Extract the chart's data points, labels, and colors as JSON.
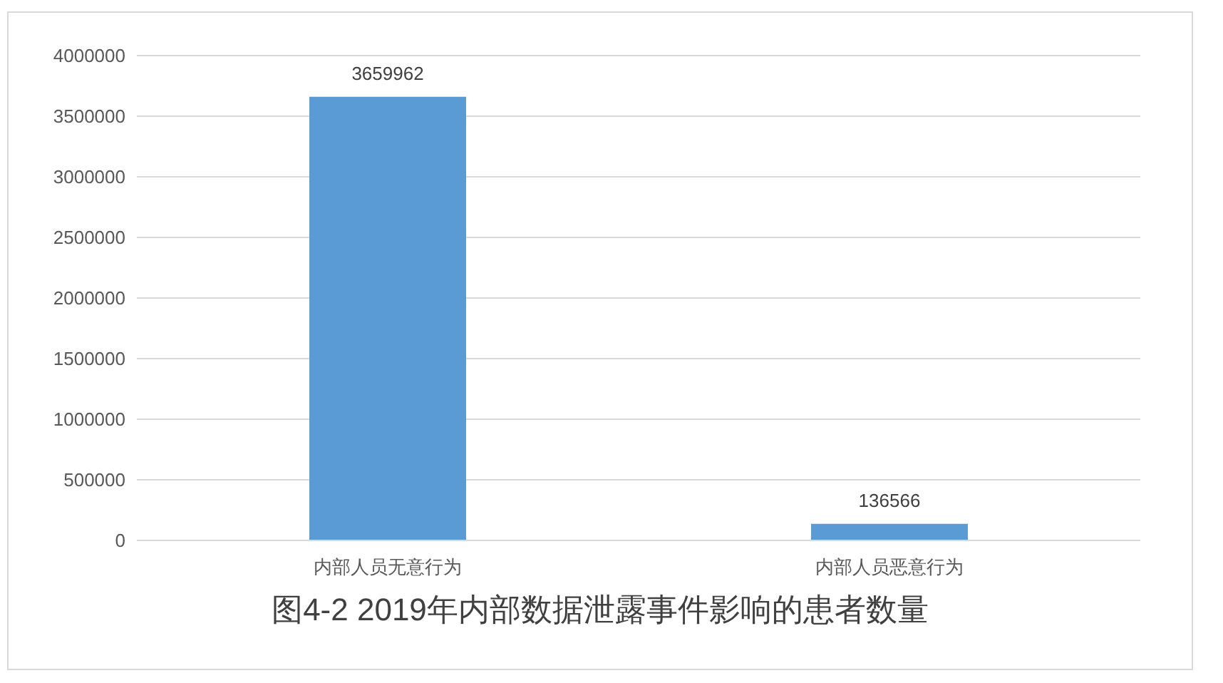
{
  "chart_data": {
    "type": "bar",
    "title": "图4-2 2019年内部数据泄露事件影响的患者数量",
    "categories": [
      "内部人员无意行为",
      "内部人员恶意行为"
    ],
    "values": [
      3659962,
      136566
    ],
    "color": "#5b9bd5",
    "ylim": [
      0,
      4000000
    ],
    "yticks": [
      0,
      500000,
      1000000,
      1500000,
      2000000,
      2500000,
      3000000,
      3500000,
      4000000
    ],
    "grid": "y",
    "data_labels": true
  }
}
